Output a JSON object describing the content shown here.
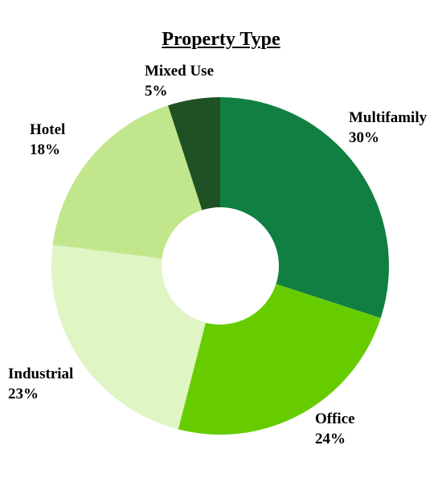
{
  "chart_data": {
    "type": "pie",
    "title": "Property Type",
    "donut": true,
    "legend": "none",
    "categories": [
      "Multifamily",
      "Office",
      "Industrial",
      "Hotel",
      "Mixed Use"
    ],
    "values": [
      30,
      24,
      23,
      18,
      5
    ],
    "value_labels": [
      "30%",
      "24%",
      "23%",
      "18%",
      "5%"
    ],
    "colors": [
      "#117f42",
      "#66cc00",
      "#dff5c4",
      "#c1e68c",
      "#1f5124"
    ]
  }
}
